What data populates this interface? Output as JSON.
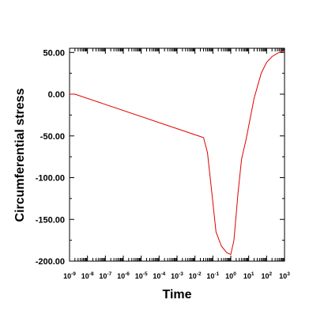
{
  "chart_data": {
    "type": "line",
    "title": "",
    "xlabel": "Time",
    "ylabel": "Circumferential stress",
    "x_scale": "log",
    "xlim": [
      1e-09,
      1000
    ],
    "ylim": [
      -200,
      55
    ],
    "x_tick_labels": [
      {
        "base": "10",
        "exp": "-9"
      },
      {
        "base": "10",
        "exp": "-8"
      },
      {
        "base": "10",
        "exp": "-7"
      },
      {
        "base": "10",
        "exp": "-6"
      },
      {
        "base": "10",
        "exp": "-5"
      },
      {
        "base": "10",
        "exp": "-4"
      },
      {
        "base": "10",
        "exp": "-3"
      },
      {
        "base": "10",
        "exp": "-2"
      },
      {
        "base": "10",
        "exp": "-1"
      },
      {
        "base": "10",
        "exp": "0"
      },
      {
        "base": "10",
        "exp": "1"
      },
      {
        "base": "10",
        "exp": "2"
      },
      {
        "base": "10",
        "exp": "3"
      }
    ],
    "y_tick_labels": [
      "50.00",
      "0.00",
      "-50.00",
      "-100.00",
      "-150.00",
      "-200.00"
    ],
    "y_tick_values": [
      50,
      0,
      -50,
      -100,
      -150,
      -200
    ],
    "grid": false,
    "series": [
      {
        "color": "#e00000",
        "x": [
          1e-09,
          2e-09,
          0.03,
          0.05,
          0.08,
          0.15,
          0.3,
          0.6,
          1.0,
          1.5,
          2.5,
          4,
          7,
          10,
          20,
          50,
          100,
          200,
          400,
          700,
          1000
        ],
        "y": [
          0,
          0,
          -52,
          -70,
          -110,
          -165,
          -182,
          -190,
          -192,
          -175,
          -120,
          -78,
          -55,
          -38,
          -5,
          25,
          38,
          45,
          49,
          51,
          52
        ]
      }
    ]
  }
}
